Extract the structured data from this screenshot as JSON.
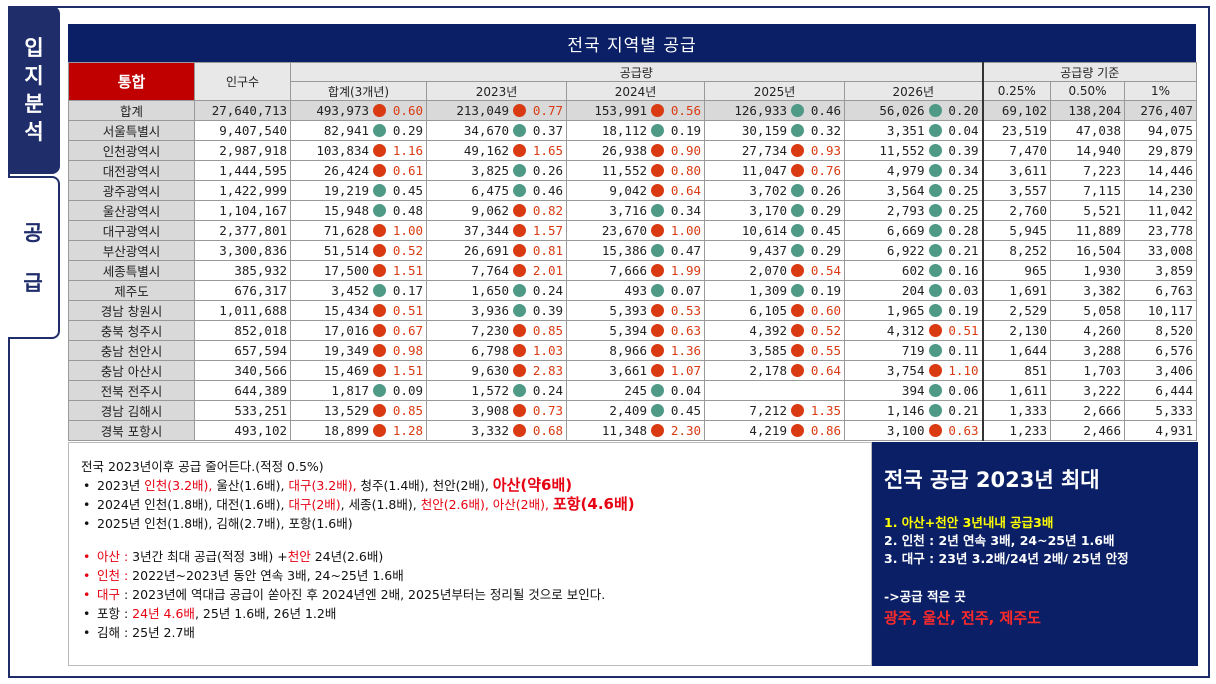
{
  "side_tabs": [
    {
      "label": "입지분석",
      "chars": [
        "입",
        "지",
        "분",
        "석"
      ]
    },
    {
      "label": "공급",
      "chars": [
        "공",
        "급"
      ]
    }
  ],
  "table": {
    "title": "전국 지역별 공급",
    "tonghap_label": "통합",
    "col_population": "인구수",
    "col_supply_group": "공급량",
    "col_total3": "합계(3개년)",
    "years": [
      "2023년",
      "2024년",
      "2025년",
      "2026년"
    ],
    "col_standard_group": "공급량 기준",
    "standards": [
      "0.25%",
      "0.50%",
      "1%"
    ],
    "total_row": {
      "name": "합계",
      "pop": "27,640,713",
      "cells": [
        {
          "v": "493,973",
          "r": "0.60",
          "c": "red"
        },
        {
          "v": "213,049",
          "r": "0.77",
          "c": "red"
        },
        {
          "v": "153,991",
          "r": "0.56",
          "c": "red"
        },
        {
          "v": "126,933",
          "r": "0.46",
          "c": "green"
        },
        {
          "v": "56,026",
          "r": "0.20",
          "c": "green"
        }
      ],
      "std": [
        "69,102",
        "138,204",
        "276,407"
      ]
    },
    "rows": [
      {
        "name": "서울특별시",
        "pop": "9,407,540",
        "cells": [
          {
            "v": "82,941",
            "r": "0.29",
            "c": "green"
          },
          {
            "v": "34,670",
            "r": "0.37",
            "c": "green"
          },
          {
            "v": "18,112",
            "r": "0.19",
            "c": "green"
          },
          {
            "v": "30,159",
            "r": "0.32",
            "c": "green"
          },
          {
            "v": "3,351",
            "r": "0.04",
            "c": "green"
          }
        ],
        "std": [
          "23,519",
          "47,038",
          "94,075"
        ]
      },
      {
        "name": "인천광역시",
        "pop": "2,987,918",
        "cells": [
          {
            "v": "103,834",
            "r": "1.16",
            "c": "red"
          },
          {
            "v": "49,162",
            "r": "1.65",
            "c": "red"
          },
          {
            "v": "26,938",
            "r": "0.90",
            "c": "red"
          },
          {
            "v": "27,734",
            "r": "0.93",
            "c": "red"
          },
          {
            "v": "11,552",
            "r": "0.39",
            "c": "green"
          }
        ],
        "std": [
          "7,470",
          "14,940",
          "29,879"
        ]
      },
      {
        "name": "대전광역시",
        "pop": "1,444,595",
        "cells": [
          {
            "v": "26,424",
            "r": "0.61",
            "c": "red"
          },
          {
            "v": "3,825",
            "r": "0.26",
            "c": "green"
          },
          {
            "v": "11,552",
            "r": "0.80",
            "c": "red"
          },
          {
            "v": "11,047",
            "r": "0.76",
            "c": "red"
          },
          {
            "v": "4,979",
            "r": "0.34",
            "c": "green"
          }
        ],
        "std": [
          "3,611",
          "7,223",
          "14,446"
        ]
      },
      {
        "name": "광주광역시",
        "pop": "1,422,999",
        "cells": [
          {
            "v": "19,219",
            "r": "0.45",
            "c": "green"
          },
          {
            "v": "6,475",
            "r": "0.46",
            "c": "green"
          },
          {
            "v": "9,042",
            "r": "0.64",
            "c": "red"
          },
          {
            "v": "3,702",
            "r": "0.26",
            "c": "green"
          },
          {
            "v": "3,564",
            "r": "0.25",
            "c": "green"
          }
        ],
        "std": [
          "3,557",
          "7,115",
          "14,230"
        ]
      },
      {
        "name": "울산광역시",
        "pop": "1,104,167",
        "cells": [
          {
            "v": "15,948",
            "r": "0.48",
            "c": "green"
          },
          {
            "v": "9,062",
            "r": "0.82",
            "c": "red"
          },
          {
            "v": "3,716",
            "r": "0.34",
            "c": "green"
          },
          {
            "v": "3,170",
            "r": "0.29",
            "c": "green"
          },
          {
            "v": "2,793",
            "r": "0.25",
            "c": "green"
          }
        ],
        "std": [
          "2,760",
          "5,521",
          "11,042"
        ]
      },
      {
        "name": "대구광역시",
        "pop": "2,377,801",
        "cells": [
          {
            "v": "71,628",
            "r": "1.00",
            "c": "red"
          },
          {
            "v": "37,344",
            "r": "1.57",
            "c": "red"
          },
          {
            "v": "23,670",
            "r": "1.00",
            "c": "red"
          },
          {
            "v": "10,614",
            "r": "0.45",
            "c": "green"
          },
          {
            "v": "6,669",
            "r": "0.28",
            "c": "green"
          }
        ],
        "std": [
          "5,945",
          "11,889",
          "23,778"
        ]
      },
      {
        "name": "부산광역시",
        "pop": "3,300,836",
        "cells": [
          {
            "v": "51,514",
            "r": "0.52",
            "c": "red"
          },
          {
            "v": "26,691",
            "r": "0.81",
            "c": "red"
          },
          {
            "v": "15,386",
            "r": "0.47",
            "c": "green"
          },
          {
            "v": "9,437",
            "r": "0.29",
            "c": "green"
          },
          {
            "v": "6,922",
            "r": "0.21",
            "c": "green"
          }
        ],
        "std": [
          "8,252",
          "16,504",
          "33,008"
        ]
      },
      {
        "name": "세종특별시",
        "pop": "385,932",
        "cells": [
          {
            "v": "17,500",
            "r": "1.51",
            "c": "red"
          },
          {
            "v": "7,764",
            "r": "2.01",
            "c": "red"
          },
          {
            "v": "7,666",
            "r": "1.99",
            "c": "red"
          },
          {
            "v": "2,070",
            "r": "0.54",
            "c": "red"
          },
          {
            "v": "602",
            "r": "0.16",
            "c": "green"
          }
        ],
        "std": [
          "965",
          "1,930",
          "3,859"
        ]
      },
      {
        "name": "제주도",
        "pop": "676,317",
        "cells": [
          {
            "v": "3,452",
            "r": "0.17",
            "c": "green"
          },
          {
            "v": "1,650",
            "r": "0.24",
            "c": "green"
          },
          {
            "v": "493",
            "r": "0.07",
            "c": "green"
          },
          {
            "v": "1,309",
            "r": "0.19",
            "c": "green"
          },
          {
            "v": "204",
            "r": "0.03",
            "c": "green"
          }
        ],
        "std": [
          "1,691",
          "3,382",
          "6,763"
        ]
      },
      {
        "name": "경남 창원시",
        "pop": "1,011,688",
        "cells": [
          {
            "v": "15,434",
            "r": "0.51",
            "c": "red"
          },
          {
            "v": "3,936",
            "r": "0.39",
            "c": "green"
          },
          {
            "v": "5,393",
            "r": "0.53",
            "c": "red"
          },
          {
            "v": "6,105",
            "r": "0.60",
            "c": "red"
          },
          {
            "v": "1,965",
            "r": "0.19",
            "c": "green"
          }
        ],
        "std": [
          "2,529",
          "5,058",
          "10,117"
        ]
      },
      {
        "name": "충북 청주시",
        "pop": "852,018",
        "cells": [
          {
            "v": "17,016",
            "r": "0.67",
            "c": "red"
          },
          {
            "v": "7,230",
            "r": "0.85",
            "c": "red"
          },
          {
            "v": "5,394",
            "r": "0.63",
            "c": "red"
          },
          {
            "v": "4,392",
            "r": "0.52",
            "c": "red"
          },
          {
            "v": "4,312",
            "r": "0.51",
            "c": "red"
          }
        ],
        "std": [
          "2,130",
          "4,260",
          "8,520"
        ]
      },
      {
        "name": "충남 천안시",
        "pop": "657,594",
        "cells": [
          {
            "v": "19,349",
            "r": "0.98",
            "c": "red"
          },
          {
            "v": "6,798",
            "r": "1.03",
            "c": "red"
          },
          {
            "v": "8,966",
            "r": "1.36",
            "c": "red"
          },
          {
            "v": "3,585",
            "r": "0.55",
            "c": "red"
          },
          {
            "v": "719",
            "r": "0.11",
            "c": "green"
          }
        ],
        "std": [
          "1,644",
          "3,288",
          "6,576"
        ]
      },
      {
        "name": "충남 아산시",
        "pop": "340,566",
        "cells": [
          {
            "v": "15,469",
            "r": "1.51",
            "c": "red"
          },
          {
            "v": "9,630",
            "r": "2.83",
            "c": "red"
          },
          {
            "v": "3,661",
            "r": "1.07",
            "c": "red"
          },
          {
            "v": "2,178",
            "r": "0.64",
            "c": "red"
          },
          {
            "v": "3,754",
            "r": "1.10",
            "c": "red"
          }
        ],
        "std": [
          "851",
          "1,703",
          "3,406"
        ]
      },
      {
        "name": "전북 전주시",
        "pop": "644,389",
        "cells": [
          {
            "v": "1,817",
            "r": "0.09",
            "c": "green"
          },
          {
            "v": "1,572",
            "r": "0.24",
            "c": "green"
          },
          {
            "v": "245",
            "r": "0.04",
            "c": "green"
          },
          {
            "v": "",
            "r": "",
            "c": ""
          },
          {
            "v": "394",
            "r": "0.06",
            "c": "green"
          }
        ],
        "std": [
          "1,611",
          "3,222",
          "6,444"
        ]
      },
      {
        "name": "경남 김해시",
        "pop": "533,251",
        "cells": [
          {
            "v": "13,529",
            "r": "0.85",
            "c": "red"
          },
          {
            "v": "3,908",
            "r": "0.73",
            "c": "red"
          },
          {
            "v": "2,409",
            "r": "0.45",
            "c": "green"
          },
          {
            "v": "7,212",
            "r": "1.35",
            "c": "red"
          },
          {
            "v": "1,146",
            "r": "0.21",
            "c": "green"
          }
        ],
        "std": [
          "1,333",
          "2,666",
          "5,333"
        ]
      },
      {
        "name": "경북 포항시",
        "pop": "493,102",
        "cells": [
          {
            "v": "18,899",
            "r": "1.28",
            "c": "red"
          },
          {
            "v": "3,332",
            "r": "0.68",
            "c": "red"
          },
          {
            "v": "11,348",
            "r": "2.30",
            "c": "red"
          },
          {
            "v": "4,219",
            "r": "0.86",
            "c": "red"
          },
          {
            "v": "3,100",
            "r": "0.63",
            "c": "red"
          }
        ],
        "std": [
          "1,233",
          "2,466",
          "4,931"
        ]
      }
    ]
  },
  "notes": {
    "heading": "전국 2023년이후 공급 줄어든다.(적정 0.5%)",
    "l1": {
      "pre": "2023년 ",
      "a": "인천(3.2배),",
      "b": " 울산(1.6배), ",
      "c": "대구(3.2배),",
      "d": " 청주(1.4배), 천안(2배), ",
      "e": "아산(약6배)"
    },
    "l2": {
      "pre": "2024년 인천(1.8배), 대전(1.6배), ",
      "a": "대구(2배)",
      "b": ", 세종(1.8배), ",
      "c": "천안(2.6배), 아산(2배),",
      "d": " ",
      "e": "포항(4.6배)"
    },
    "l3": "2025년 인천(1.8배), 김해(2.7배), 포항(1.6배)",
    "l4": {
      "a": "아산 :",
      "b": " 3년간 최대 공급(적정 3배) +",
      "c": "천안",
      "d": " 24년(2.6배)"
    },
    "l5": {
      "a": "인천 :",
      "b": " 2022년~2023년 동안 연속 3배, 24~25년 1.6배"
    },
    "l6": {
      "a": "대구",
      "b": " : 2023년에 역대급 공급이 쏟아진 후 2024년엔 2배, 2025년부터는 정리될 것으로 보인다."
    },
    "l7": {
      "a": "포항 : ",
      "b": "24년 4.6배",
      "c": ", 25년 1.6배, 26년 1.2배"
    },
    "l8": "김해 : 25년 2.7배"
  },
  "summary": {
    "head": "전국 공급 2023년 최대",
    "p1": "1.  아산+천안 3년내내 공급3배",
    "p2": "2.  인천 : 2년 연속 3배, 24~25년 1.6배",
    "p3": "3.  대구 : 23년 3.2배/24년 2배/ 25년 안정",
    "arrow": "->공급 적은 곳",
    "low": "광주, 울산, 전주, 제주도"
  },
  "colors": {
    "navy": "#0a1f66",
    "red_dot": "#d93a12",
    "green_dot": "#4e9a86",
    "tonghap_red": "#c00000"
  }
}
